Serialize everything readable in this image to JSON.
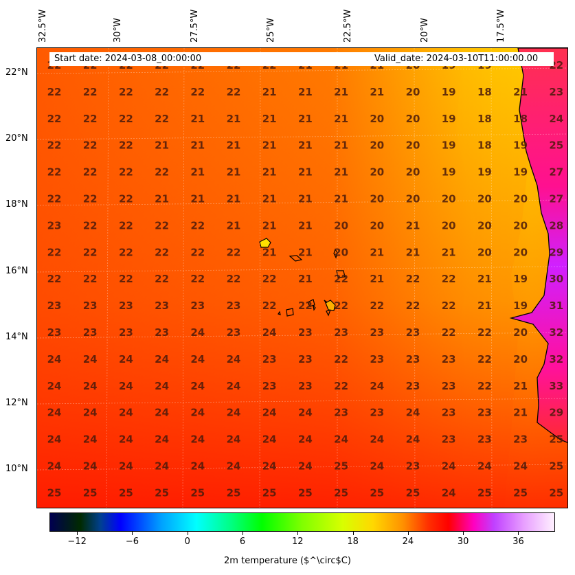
{
  "header": {
    "start_date": "Start date: 2024-03-08_00:00:00",
    "valid_date": "Valid_date: 2024-03-10T11:00:00.00"
  },
  "lon_labels": [
    "32.5°W",
    "30°W",
    "27.5°W",
    "25°W",
    "22.5°W",
    "20°W",
    "17.5°W"
  ],
  "lat_labels": [
    "22°N",
    "20°N",
    "18°N",
    "16°N",
    "14°N",
    "12°N",
    "10°N"
  ],
  "colorbar": {
    "title": "2m temperature ($^\\circ$C)",
    "tick_labels": [
      "−12",
      "−6",
      "0",
      "6",
      "12",
      "18",
      "24",
      "30",
      "36"
    ],
    "range": [
      -15,
      40
    ]
  },
  "grid_values": [
    [
      "22",
      "22",
      "22",
      "22",
      "22",
      "22",
      "22",
      "21",
      "21",
      "21",
      "20",
      "19",
      "19",
      "22"
    ],
    [
      "22",
      "22",
      "22",
      "22",
      "22",
      "22",
      "21",
      "21",
      "21",
      "21",
      "20",
      "19",
      "18",
      "21",
      "23"
    ],
    [
      "22",
      "22",
      "22",
      "22",
      "21",
      "21",
      "21",
      "21",
      "21",
      "20",
      "20",
      "19",
      "18",
      "18",
      "24"
    ],
    [
      "22",
      "22",
      "22",
      "21",
      "21",
      "21",
      "21",
      "21",
      "21",
      "20",
      "20",
      "19",
      "18",
      "19",
      "25"
    ],
    [
      "22",
      "22",
      "22",
      "22",
      "21",
      "21",
      "21",
      "21",
      "21",
      "20",
      "20",
      "19",
      "19",
      "19",
      "27"
    ],
    [
      "22",
      "22",
      "22",
      "21",
      "21",
      "21",
      "21",
      "21",
      "21",
      "20",
      "20",
      "20",
      "20",
      "20",
      "27"
    ],
    [
      "23",
      "22",
      "22",
      "22",
      "22",
      "21",
      "21",
      "21",
      "20",
      "20",
      "21",
      "20",
      "20",
      "20",
      "28"
    ],
    [
      "22",
      "22",
      "22",
      "22",
      "22",
      "22",
      "21",
      "21",
      "20",
      "21",
      "21",
      "21",
      "20",
      "20",
      "29"
    ],
    [
      "22",
      "22",
      "22",
      "22",
      "22",
      "22",
      "22",
      "21",
      "22",
      "21",
      "22",
      "22",
      "21",
      "19",
      "30"
    ],
    [
      "23",
      "23",
      "23",
      "23",
      "23",
      "23",
      "22",
      "22",
      "22",
      "22",
      "22",
      "22",
      "21",
      "19",
      "31"
    ],
    [
      "23",
      "23",
      "23",
      "23",
      "24",
      "23",
      "24",
      "23",
      "23",
      "23",
      "23",
      "22",
      "22",
      "20",
      "32"
    ],
    [
      "24",
      "24",
      "24",
      "24",
      "24",
      "24",
      "23",
      "23",
      "22",
      "23",
      "23",
      "23",
      "22",
      "20",
      "32"
    ],
    [
      "24",
      "24",
      "24",
      "24",
      "24",
      "24",
      "23",
      "23",
      "22",
      "24",
      "23",
      "23",
      "22",
      "21",
      "33"
    ],
    [
      "24",
      "24",
      "24",
      "24",
      "24",
      "24",
      "24",
      "24",
      "23",
      "23",
      "24",
      "23",
      "23",
      "21",
      "29"
    ],
    [
      "24",
      "24",
      "24",
      "24",
      "24",
      "24",
      "24",
      "24",
      "24",
      "24",
      "24",
      "23",
      "23",
      "23",
      "25"
    ],
    [
      "24",
      "24",
      "24",
      "24",
      "24",
      "24",
      "24",
      "24",
      "25",
      "24",
      "23",
      "24",
      "24",
      "24",
      "25"
    ],
    [
      "25",
      "25",
      "25",
      "25",
      "25",
      "25",
      "25",
      "25",
      "25",
      "25",
      "25",
      "24",
      "25",
      "25",
      "25"
    ]
  ]
}
